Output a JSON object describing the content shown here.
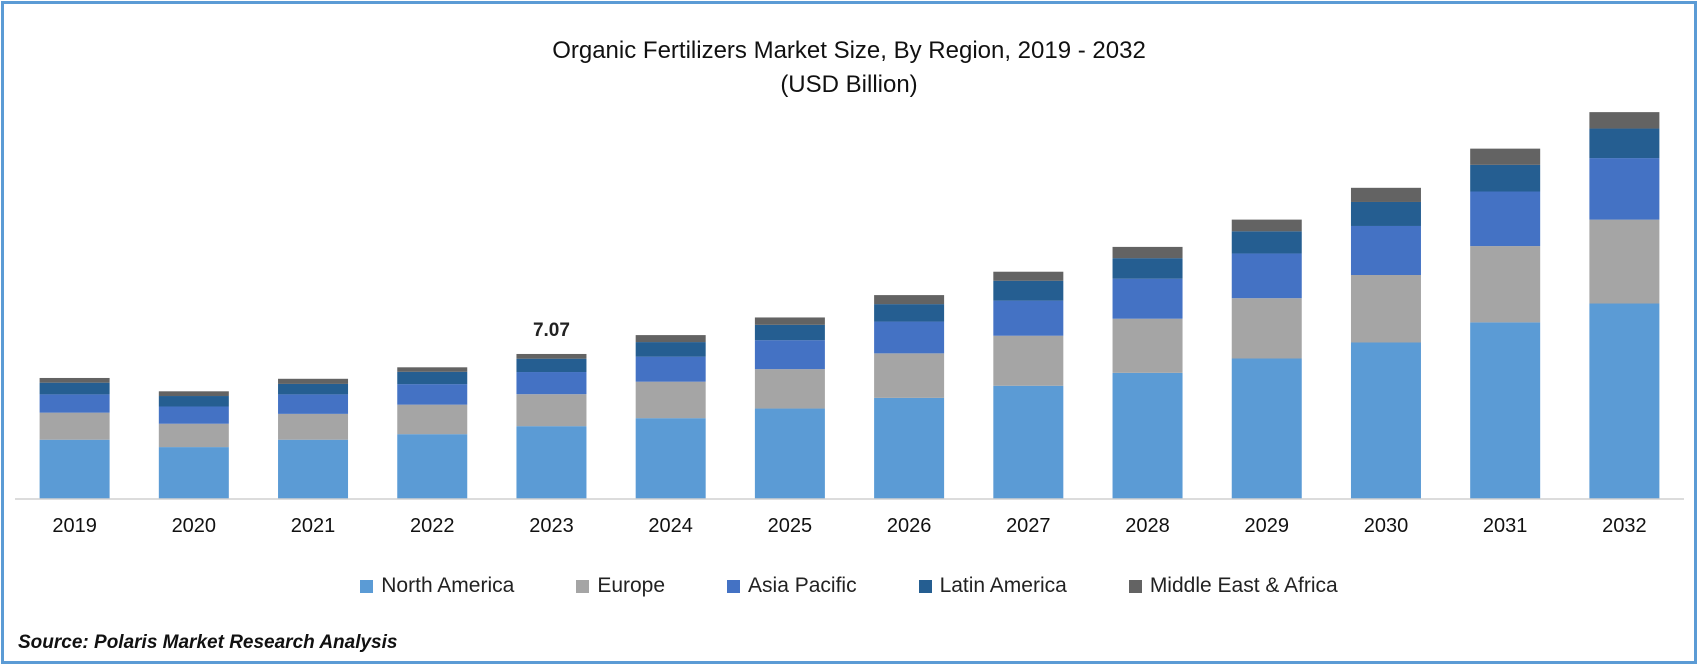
{
  "chart_data": {
    "type": "bar",
    "stacked": true,
    "title": "Organic Fertilizers Market Size, By Region, 2019 - 2032",
    "subtitle": "(USD Billion)",
    "categories": [
      "2019",
      "2020",
      "2021",
      "2022",
      "2023",
      "2024",
      "2025",
      "2026",
      "2027",
      "2028",
      "2029",
      "2030",
      "2031",
      "2032"
    ],
    "series": [
      {
        "name": "North America",
        "color": "#5b9bd5",
        "values": [
          2.89,
          2.53,
          2.89,
          3.16,
          3.55,
          3.94,
          4.41,
          4.93,
          5.52,
          6.15,
          6.85,
          7.63,
          8.61,
          9.53
        ]
      },
      {
        "name": "Europe",
        "color": "#a5a5a5",
        "values": [
          1.32,
          1.14,
          1.26,
          1.44,
          1.56,
          1.78,
          1.92,
          2.17,
          2.44,
          2.64,
          2.94,
          3.29,
          3.72,
          4.09
        ]
      },
      {
        "name": "Asia Pacific",
        "color": "#4472c4",
        "values": [
          0.89,
          0.84,
          0.95,
          1.0,
          1.08,
          1.22,
          1.41,
          1.55,
          1.71,
          1.95,
          2.18,
          2.39,
          2.66,
          3.0
        ]
      },
      {
        "name": "Latin America",
        "color": "#255e91",
        "values": [
          0.57,
          0.51,
          0.51,
          0.6,
          0.65,
          0.71,
          0.75,
          0.85,
          0.97,
          1.0,
          1.08,
          1.17,
          1.3,
          1.44
        ]
      },
      {
        "name": "Middle East & Africa",
        "color": "#636363",
        "values": [
          0.23,
          0.23,
          0.25,
          0.22,
          0.23,
          0.34,
          0.36,
          0.44,
          0.44,
          0.55,
          0.57,
          0.69,
          0.79,
          0.8
        ]
      }
    ],
    "data_labels": [
      {
        "category": "2023",
        "text": "7.07"
      }
    ],
    "ylim": [
      0,
      19.5
    ],
    "grid": false,
    "legend": "bottom",
    "xlabel": "",
    "ylabel": ""
  },
  "source": "Source: Polaris Market Research Analysis"
}
